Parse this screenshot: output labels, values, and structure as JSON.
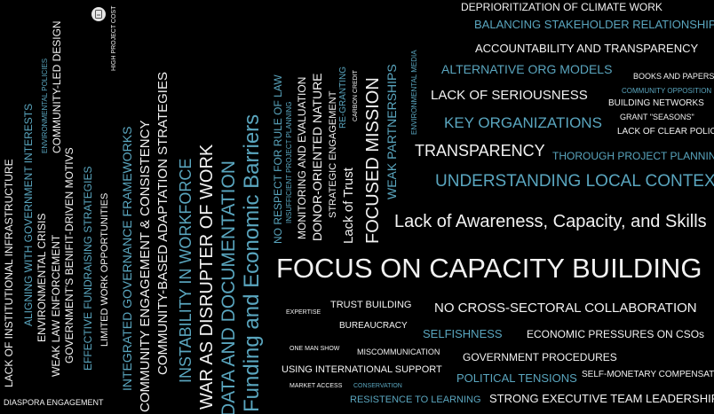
{
  "colors": {
    "background": "#000000",
    "white": "#f2f2f2",
    "teal": "#5aa6bf",
    "grey": "#c9c9c9"
  },
  "badge": {
    "icon": "edit-icon"
  },
  "words": {
    "lack_institutional_infrastructure": "LACK OF INSTITUTIONAL INFRASTRUCTURE",
    "diaspora_engagement": "DIASPORA ENGAGEMENT",
    "aligning_government": "ALIGNING WITH GOVERNMENT INTERESTS",
    "environmental_crisis": "ENVIRONMENTAL CRISIS",
    "environmental_policies": "ENVIRONMENTAL POLICIES",
    "weak_law_enforcement": "WEAK LAW ENFORCEMENT",
    "community_led_design": "COMMUNITY-LED DESIGN",
    "government_benefit": "GOVERNMENT'S BENIFIT-DRIVEN MOTIVS",
    "effective_fundraising": "EFFECTIVE FUNDRAISING STRATEGIES",
    "high_project_cost": "HIGH PROJECT COST",
    "limited_work_opportunities": "LIMITED WORK OPPORTUNITIES",
    "integrated_governance": "INTEGRATED GOVERNANCE FRAMEWORKS",
    "community_engagement": "COMMUNITY ENGAGEMENT & CONSISTENCY",
    "community_adaptation": "COMMUNITY-BASED ADAPTATION STRATEGIES",
    "instability_workforce": "INSTABILITY IN WORKFORCE",
    "war_disrupter": "WAR AS DISRUPTER OF WORK",
    "data_documentation": "DATA AND DOCUMENTATION",
    "funding_barriers": "Funding and Economic Barriers",
    "no_respect_law": "NO RESPECT FOR RULE OF LAW",
    "insufficient_planning": "INSUFFICIENT PROJECT PLANNING",
    "monitoring_evaluation": "MONITORING AND EVALUATION",
    "donor_oriented": "DONOR-ORIENTED NATURE",
    "strategic_engagement": "STRATEGIC ENGAGEMENT",
    "re_granting": "RE-GRANTING",
    "lack_of_trust": "Lack of Trust",
    "carbon_credit": "CARBON CREDIT",
    "focused_mission": "FOCUSED MISSION",
    "weak_partnerships": "WEAK PARTNERSHIPS",
    "environmental_media": "ENVIRONMENTAL MEDIA",
    "deprioritization": "DEPRIORITIZATION OF CLIMATE WORK",
    "balancing_stakeholder": "BALANCING STAKEHOLDER RELATIONSHIPS",
    "accountability": "ACCOUNTABILITY AND TRANSPARENCY",
    "alternative_org_models": "ALTERNATIVE ORG MODELS",
    "books_papers": "BOOKS AND PAPERS",
    "community_opposition": "COMMUNITY OPPOSITION",
    "lack_of_seriousness": "LACK OF SERIOUSNESS",
    "building_networks": "BUILDING NETWORKS",
    "key_organizations": "KEY ORGANIZATIONS",
    "grant_seasons": "GRANT \"SEASONS\"",
    "lack_clear_policies": "LACK OF CLEAR POLICIES",
    "transparency": "TRANSPARENCY",
    "thorough_planning": "THOROUGH PROJECT PLANNING",
    "understanding_context": "UNDERSTANDING LOCAL CONTEXT",
    "lack_awareness": "Lack of Awareness, Capacity, and Skills",
    "focus_capacity": "FOCUS ON CAPACITY BUILDING",
    "expertise": "EXPERTISE",
    "trust_building": "TRUST BUILDING",
    "no_cross_sectoral": "NO CROSS-SECTORAL COLLABORATION",
    "bureaucracy": "BUREAUCRACY",
    "selfishness": "SELFISHNESS",
    "economic_pressures": "ECONOMIC PRESSURES ON CSOs",
    "one_man_show": "ONE MAN SHOW",
    "miscommunication": "MISCOMMUNICATION",
    "government_procedures": "GOVERNMENT PROCEDURES",
    "international_support": "USING INTERNATIONAL SUPPORT",
    "political_tensions": "POLITICAL TENSIONS",
    "self_monetary": "SELF-MONETARY COMPENSATION",
    "market_access": "MARKET ACCESS",
    "conservation": "CONSERVATION",
    "resistence_learning": "RESISTENCE TO LEARNING",
    "strong_leadership": "STRONG EXECUTIVE TEAM LEADERSHIP"
  }
}
